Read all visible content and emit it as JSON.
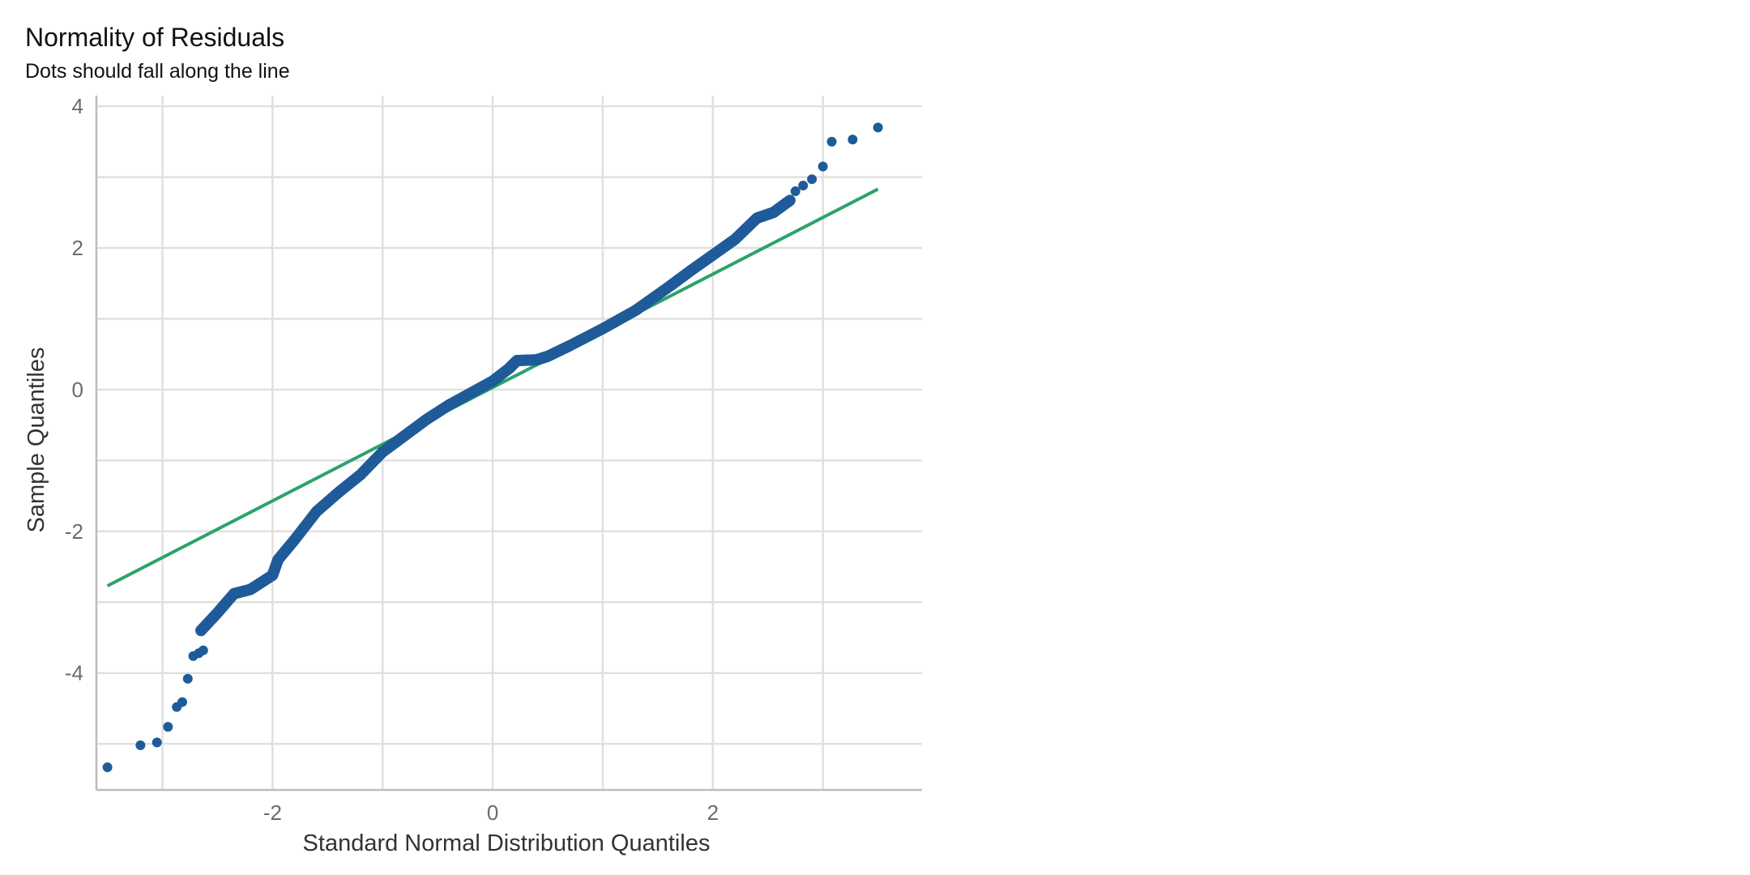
{
  "chart_data": {
    "type": "scatter",
    "title": "Normality of Residuals",
    "subtitle": "Dots should fall along the line",
    "xlabel": "Standard Normal Distribution Quantiles",
    "ylabel": "Sample Quantiles",
    "xlim": [
      -3.6,
      3.9
    ],
    "ylim": [
      -5.65,
      4.15
    ],
    "x_ticks": [
      -2,
      0,
      2
    ],
    "x_tick_labels": [
      "-2",
      "0",
      "2"
    ],
    "y_ticks": [
      -4,
      -2,
      0,
      2,
      4
    ],
    "y_tick_labels": [
      "-4",
      "-2",
      "0",
      "2",
      "4"
    ],
    "x_minor_ticks": [
      -3,
      -1,
      1,
      3
    ],
    "y_minor_ticks": [
      -5,
      -3,
      -1,
      1,
      3
    ],
    "grid": true,
    "colors": {
      "points": "#1f5b99",
      "reference_line": "#2ca26a",
      "grid": "#e0e0e0",
      "axis": "#bdbdbd",
      "tick_text": "#6b6b6b",
      "title_text": "#111111"
    },
    "reference_line": {
      "x": [
        -3.5,
        3.5
      ],
      "y": [
        -2.77,
        2.83
      ]
    },
    "curve_anchors": {
      "x": [
        -2.65,
        -2.5,
        -2.35,
        -2.2,
        -2.0,
        -1.95,
        -1.8,
        -1.6,
        -1.4,
        -1.2,
        -1.0,
        -0.8,
        -0.6,
        -0.4,
        -0.2,
        0.0,
        0.15,
        0.22,
        0.4,
        0.5,
        0.7,
        1.0,
        1.3,
        1.6,
        1.8,
        2.0,
        2.2,
        2.4,
        2.55,
        2.7
      ],
      "y": [
        -3.4,
        -3.15,
        -2.88,
        -2.82,
        -2.62,
        -2.4,
        -2.12,
        -1.72,
        -1.45,
        -1.2,
        -0.88,
        -0.65,
        -0.42,
        -0.22,
        -0.05,
        0.12,
        0.3,
        0.41,
        0.42,
        0.47,
        0.62,
        0.86,
        1.12,
        1.45,
        1.68,
        1.9,
        2.12,
        2.42,
        2.5,
        2.67
      ]
    },
    "points": {
      "x": [
        -3.5,
        -3.2,
        -3.05,
        -2.95,
        -2.87,
        -2.82,
        -2.77,
        -2.72,
        -2.67,
        -2.63,
        2.75,
        2.82,
        2.9,
        3.0,
        3.08,
        3.27,
        3.5
      ],
      "y": [
        -5.33,
        -5.02,
        -4.98,
        -4.76,
        -4.48,
        -4.41,
        -4.08,
        -3.76,
        -3.72,
        -3.68,
        2.8,
        2.88,
        2.97,
        3.15,
        3.5,
        3.53,
        3.7
      ]
    }
  }
}
